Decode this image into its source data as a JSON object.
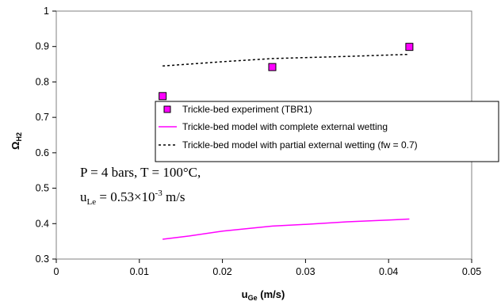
{
  "colors": {
    "marker": "#ff00ff",
    "complete_line": "#ff00ff",
    "partial_line": "#000000"
  },
  "chart_data": {
    "type": "scatter",
    "xlabel": {
      "main": "u",
      "sub": "Ge",
      "rest": " (m/s)"
    },
    "ylabel": {
      "main": "Ω",
      "sub": "H2"
    },
    "xlim": [
      0,
      0.05
    ],
    "ylim": [
      0.3,
      1.0
    ],
    "xticks": [
      "0",
      "0.01",
      "0.02",
      "0.03",
      "0.04",
      "0.05"
    ],
    "yticks": [
      "0.3",
      "0.4",
      "0.5",
      "0.6",
      "0.7",
      "0.8",
      "0.9",
      "1"
    ],
    "grid": false,
    "legend_position": "center-right",
    "series": [
      {
        "name": "Trickle-bed experiment (TBR1)",
        "kind": "markers",
        "marker": "square",
        "x": [
          0.0128,
          0.026,
          0.0425
        ],
        "y": [
          0.76,
          0.842,
          0.899
        ]
      },
      {
        "name": "Trickle-bed model with complete external wetting",
        "kind": "line",
        "style": "solid",
        "x": [
          0.0128,
          0.016,
          0.02,
          0.026,
          0.03,
          0.035,
          0.04,
          0.0425
        ],
        "y": [
          0.356,
          0.365,
          0.379,
          0.393,
          0.398,
          0.405,
          0.41,
          0.413
        ]
      },
      {
        "name": "Trickle-bed model with partial external wetting (fw = 0.7)",
        "kind": "line",
        "style": "dotted",
        "x": [
          0.0128,
          0.02,
          0.026,
          0.035,
          0.0425
        ],
        "y": [
          0.845,
          0.857,
          0.866,
          0.872,
          0.878
        ]
      }
    ],
    "annotations": {
      "line1": "P = 4 bars, T = 100°C,",
      "line2": {
        "u": "u",
        "u_sub": "Le",
        "eq": " = 0.53×10",
        "exp": "-3",
        "unit": " m/s"
      }
    }
  }
}
